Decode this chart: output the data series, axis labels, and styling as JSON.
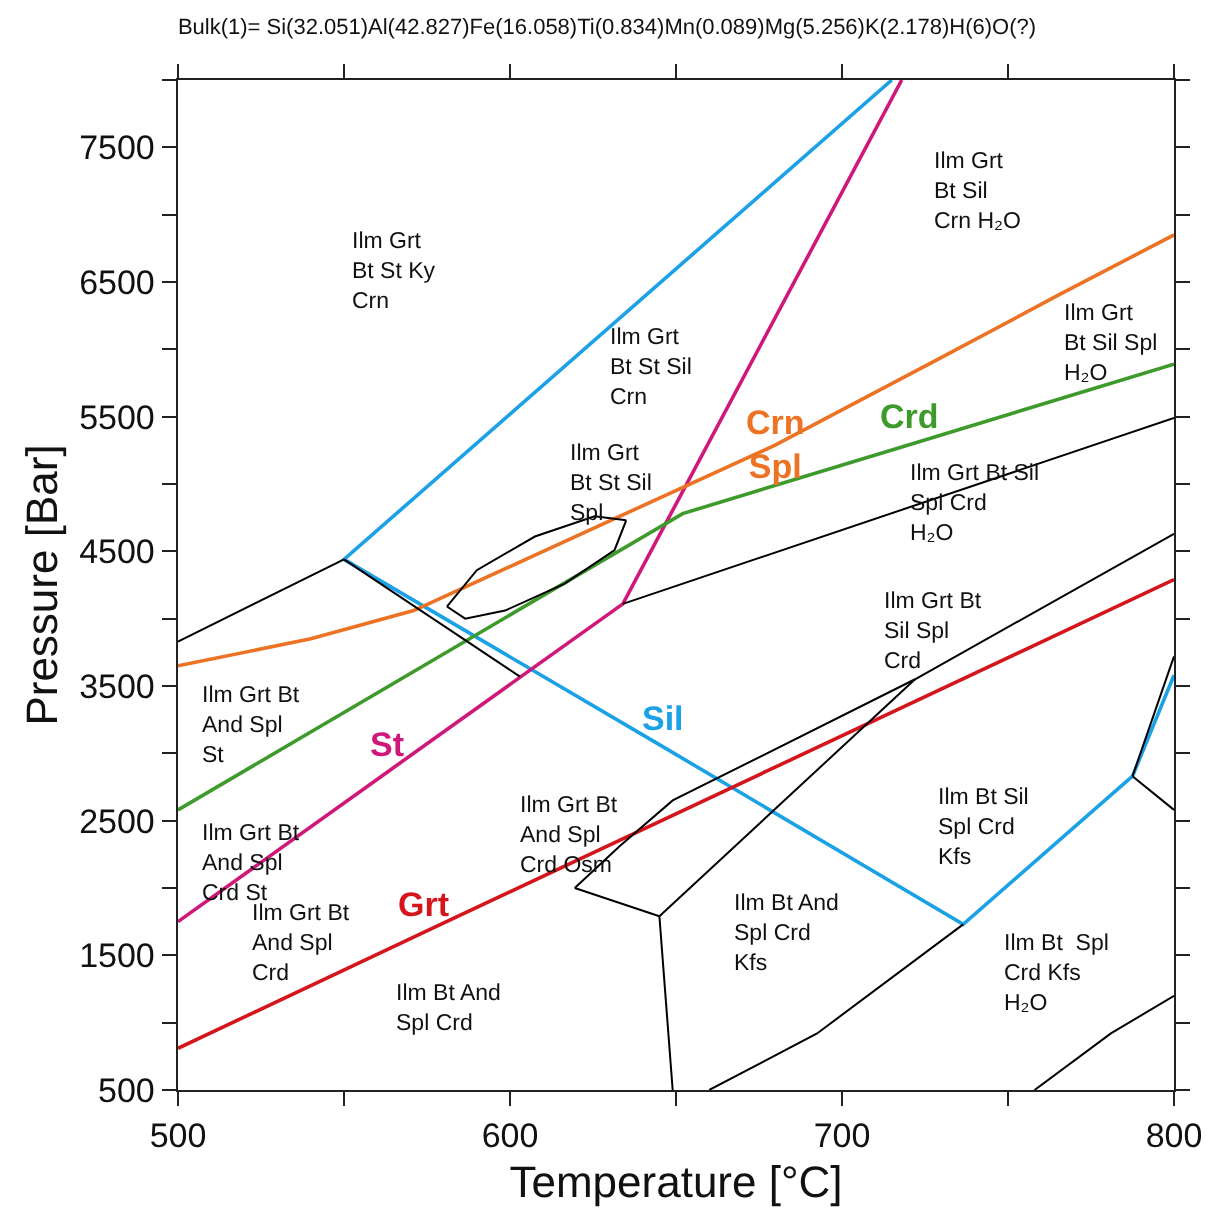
{
  "chart_data": {
    "type": "line",
    "title": "Bulk(1)= Si(32.051)Al(42.827)Fe(16.058)Ti(0.834)Mn(0.089)Mg(5.256)K(2.178)H(6)O(?)",
    "xlabel": "Temperature [°C]",
    "ylabel": "Pressure [Bar]",
    "xlim": [
      500,
      800
    ],
    "ylim": [
      500,
      8000
    ],
    "xticks": [
      500,
      {
        "value": 550,
        "label": null
      },
      600,
      {
        "value": 650,
        "label": null
      },
      700,
      {
        "value": 750,
        "label": null
      },
      800
    ],
    "yticks": [
      500,
      {
        "value": 1000,
        "label": null
      },
      1500,
      {
        "value": 2000,
        "label": null
      },
      2500,
      {
        "value": 3000,
        "label": null
      },
      3500,
      {
        "value": 4000,
        "label": null
      },
      4500,
      {
        "value": 5000,
        "label": null
      },
      5500,
      {
        "value": 6000,
        "label": null
      },
      6500,
      {
        "value": 7000,
        "label": null
      },
      7500,
      {
        "value": 8000,
        "label": null
      }
    ],
    "grid": false,
    "legend": false,
    "series": [
      {
        "name": "Sil",
        "color": "#1ba1e6",
        "x": [
          715,
          550,
          646,
          736.5,
          787.5,
          800
        ],
        "values": [
          8000,
          4440,
          3050,
          1730,
          2830,
          3580
        ]
      },
      {
        "name": "St",
        "color": "#d0187a",
        "x": [
          500,
          563,
          634,
          718
        ],
        "values": [
          1750,
          2860,
          4110,
          8000
        ]
      },
      {
        "name": "Crn\nSpl",
        "color": "#ec7324",
        "x": [
          500,
          540,
          571,
          680,
          730,
          765,
          800
        ],
        "values": [
          3650,
          3850,
          4060,
          5290,
          5940,
          6400,
          6850
        ]
      },
      {
        "name": "Crd",
        "color": "#3f9a2c",
        "x": [
          500,
          652,
          720,
          760,
          800
        ],
        "values": [
          2580,
          4780,
          5290,
          5590,
          5890
        ]
      },
      {
        "name": "Grt",
        "color": "#d4161c",
        "x": [
          500,
          574,
          800
        ],
        "values": [
          810,
          1670,
          4290
        ]
      },
      {
        "color": "#000000",
        "x": [
          500,
          550
        ],
        "values": [
          3830,
          4440
        ]
      },
      {
        "color": "#000000",
        "x": [
          550,
          603
        ],
        "values": [
          4440,
          3570
        ]
      },
      {
        "color": "#000000",
        "x": [
          634,
          800
        ],
        "values": [
          4110,
          5490
        ]
      },
      {
        "color": "#000000",
        "x": [
          619.5,
          633,
          649,
          722,
          800
        ],
        "values": [
          2000,
          2310,
          2650,
          3550,
          4630
        ]
      },
      {
        "color": "#000000",
        "x": [
          619.5,
          645
        ],
        "values": [
          2000,
          1790
        ]
      },
      {
        "color": "#000000",
        "x": [
          645,
          722
        ],
        "values": [
          1790,
          3550
        ]
      },
      {
        "color": "#000000",
        "x": [
          645,
          649
        ],
        "values": [
          1790,
          500
        ]
      },
      {
        "color": "#000000",
        "x": [
          660,
          692.5,
          736.5
        ],
        "values": [
          500,
          920,
          1730
        ]
      },
      {
        "color": "#000000",
        "x": [
          758,
          781,
          800
        ],
        "values": [
          500,
          920,
          1200
        ]
      },
      {
        "color": "#000000",
        "x": [
          787.5,
          800
        ],
        "values": [
          2830,
          3720
        ]
      },
      {
        "color": "#000000",
        "x": [
          787.5,
          800
        ],
        "values": [
          2830,
          2580
        ]
      },
      {
        "color": "#000000",
        "x": [
          581,
          590,
          607.5,
          625.5,
          635
        ],
        "values": [
          4090,
          4360,
          4610,
          4760,
          4730
        ]
      },
      {
        "color": "#000000",
        "x": [
          635,
          631.5,
          616.5,
          598.5,
          586.5,
          581
        ],
        "values": [
          4730,
          4510,
          4260,
          4060,
          4000,
          4090
        ]
      }
    ],
    "annotations": [
      "Ilm Grt\nBt St Ky\nCrn",
      "Ilm Grt\nBt St Sil\nCrn",
      "Ilm Grt\nBt St Sil\nSpl",
      "Ilm Grt\nBt Sil\nCrn H₂O",
      "Ilm Grt\nBt Sil Spl\nH₂O",
      "Ilm Grt Bt Sil\nSpl Crd\nH₂O",
      "Ilm Grt Bt\nSil Spl\nCrd",
      "Ilm Grt Bt\nAnd Spl\nSt",
      "Ilm Grt Bt\nAnd Spl\nCrd St",
      "Ilm Grt Bt\nAnd Spl\nCrd",
      "Ilm Grt Bt\nAnd Spl\nCrd Osm",
      "Ilm Bt And\nSpl Crd",
      "Ilm Bt Sil\nSpl Crd\nKfs",
      "Ilm Bt And\nSpl Crd\nKfs",
      "Ilm Bt  Spl\nCrd Kfs\nH₂O"
    ]
  }
}
